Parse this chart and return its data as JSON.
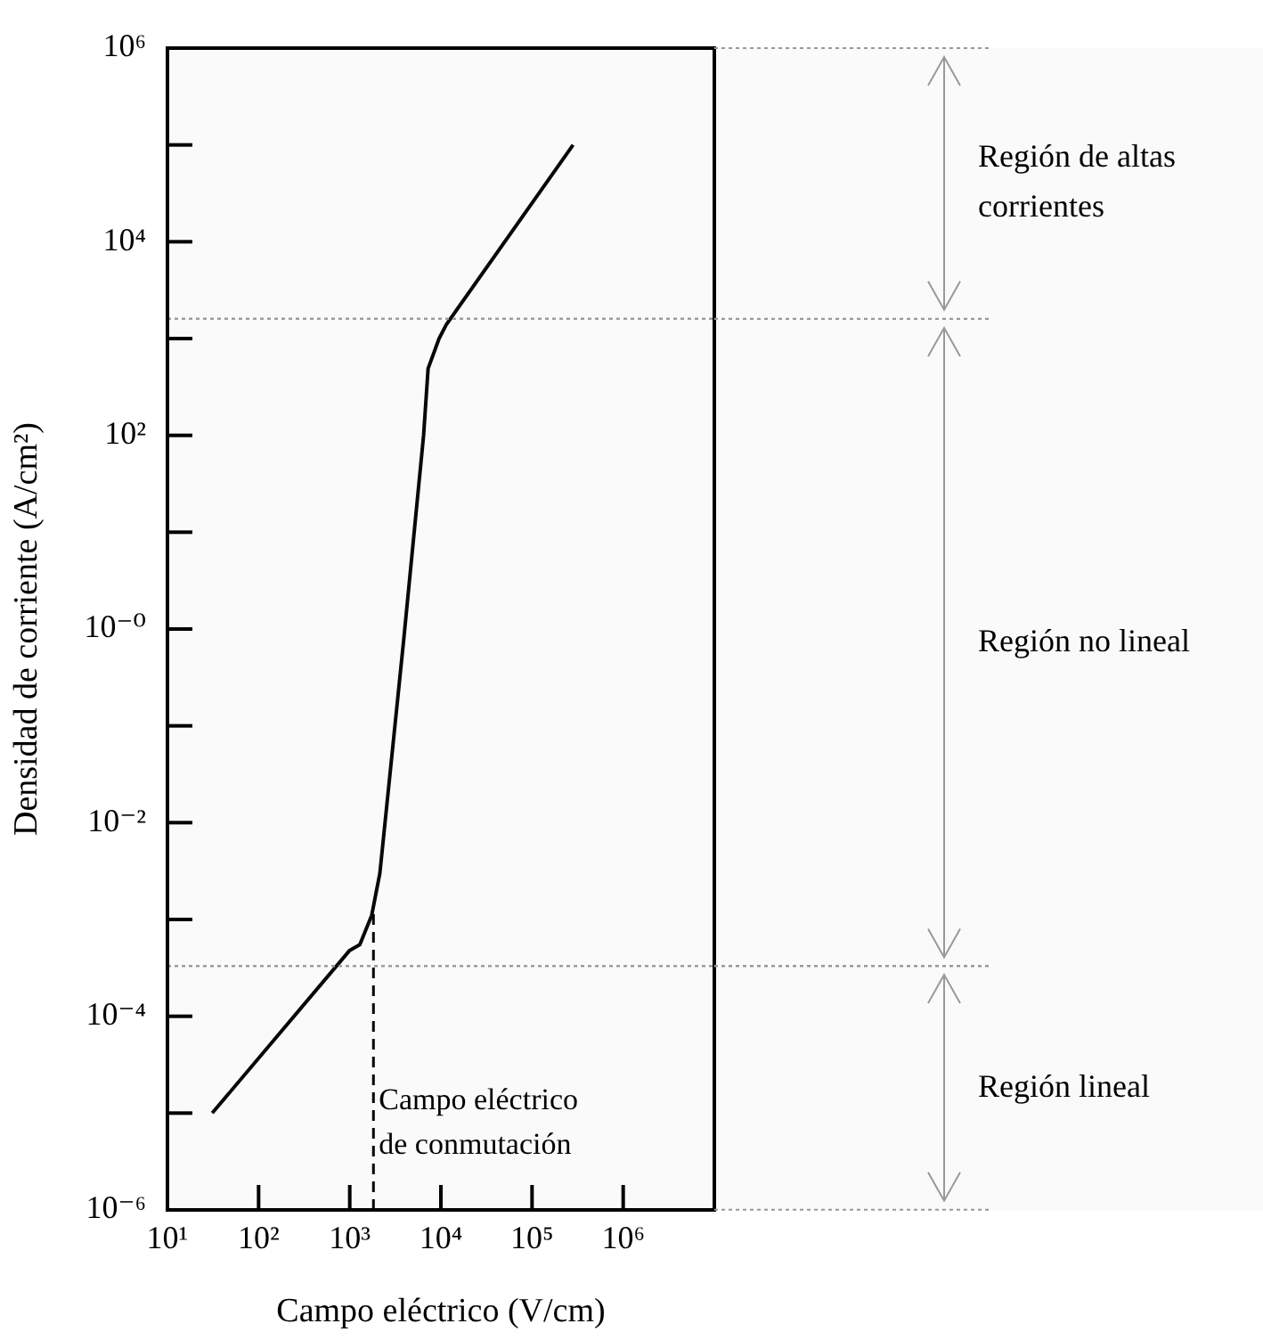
{
  "chart_data": {
    "type": "line",
    "xlabel": "Campo eléctrico (V/cm)",
    "ylabel": "Densidad de corriente (A/cm²)",
    "log": "xy",
    "color": "#000000",
    "x": [
      31,
      1000,
      1290,
      1740,
      2140,
      3890,
      6460,
      7240,
      9550,
      11500,
      282000
    ],
    "values": [
      1e-05,
      0.00048,
      0.00055,
      0.0011,
      0.003,
      0.74,
      100,
      490,
      1000,
      1400,
      100000
    ],
    "xlim": [
      10,
      10000000
    ],
    "ylim": [
      1e-06,
      1000000
    ],
    "xticks": [
      {
        "value": 10,
        "label": "10¹"
      },
      {
        "value": 100,
        "label": "10²"
      },
      {
        "value": 1000,
        "label": "10³"
      },
      {
        "value": 10000,
        "label": "10⁴"
      },
      {
        "value": 100000,
        "label": "10⁵"
      },
      {
        "value": 1000000,
        "label": "10⁶"
      }
    ],
    "yticks": [
      {
        "value": 1e-06,
        "label": "10⁻⁶"
      },
      {
        "value": 1e-05,
        "label": null
      },
      {
        "value": 0.0001,
        "label": "10⁻⁴"
      },
      {
        "value": 0.001,
        "label": null
      },
      {
        "value": 0.01,
        "label": "10⁻²"
      },
      {
        "value": 0.1,
        "label": null
      },
      {
        "value": 1,
        "label": "10⁻⁰"
      },
      {
        "value": 10,
        "label": null
      },
      {
        "value": 100,
        "label": "10²"
      },
      {
        "value": 1000,
        "label": null
      },
      {
        "value": 10000,
        "label": "10⁴"
      },
      {
        "value": 100000,
        "label": null
      },
      {
        "value": 1000000,
        "label": "10⁶"
      }
    ],
    "ref_lines": [
      {
        "axis": "x",
        "value": 1820,
        "label": "Campo eléctrico de conmutación",
        "line_style": "dashed",
        "color": "#000000"
      }
    ],
    "bands": [
      {
        "axis": "y",
        "from": 1600,
        "to": 1000000,
        "label": "Región de altas corrientes",
        "color": "#999999"
      },
      {
        "axis": "y",
        "from": 0.00033,
        "to": 1600,
        "label": "Región no lineal",
        "color": "#999999"
      },
      {
        "axis": "y",
        "from": 1e-06,
        "to": 0.00033,
        "label": "Región lineal",
        "color": "#999999"
      }
    ]
  }
}
